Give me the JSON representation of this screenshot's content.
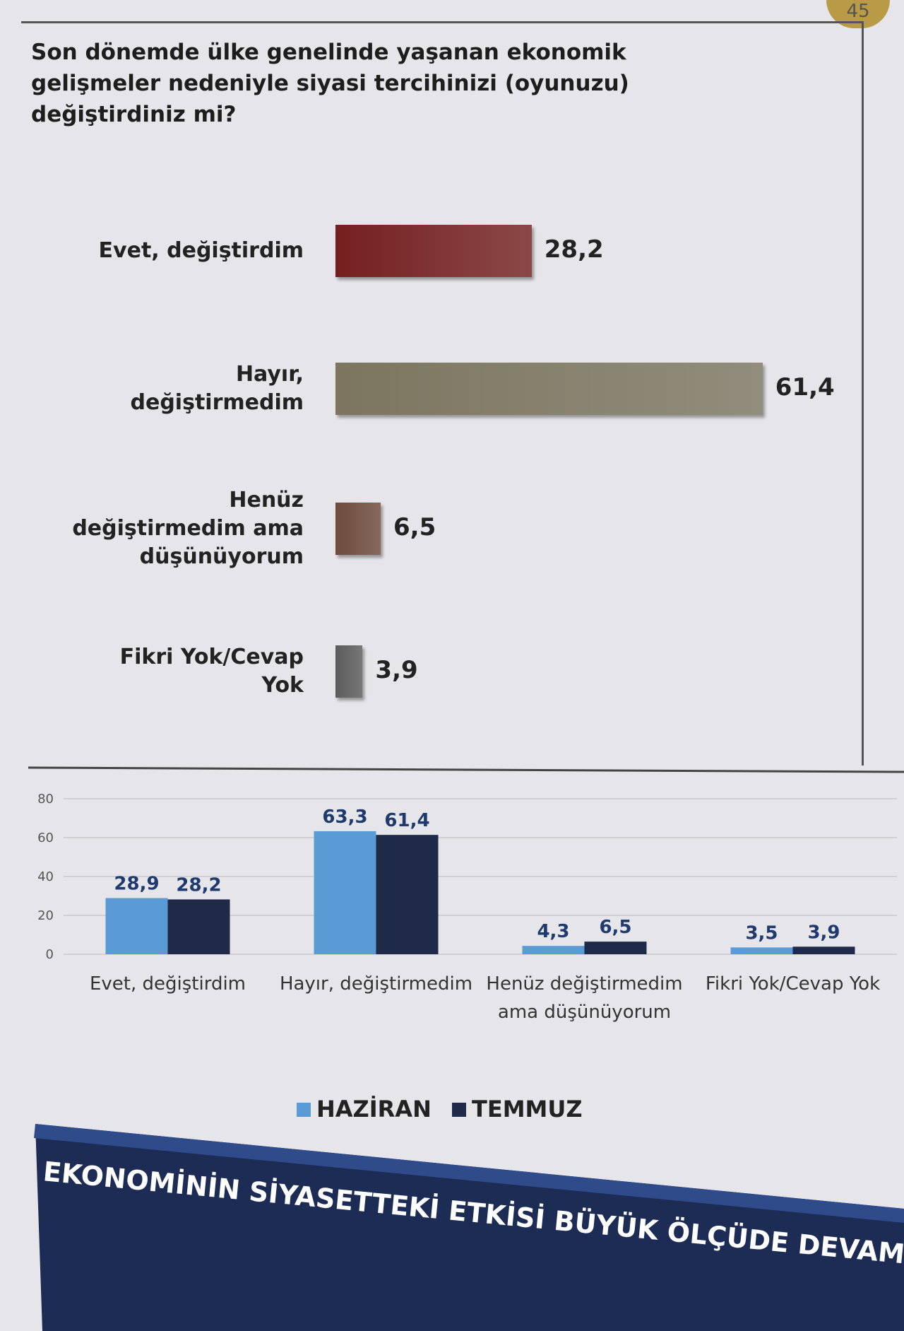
{
  "header": {
    "page_number": "45"
  },
  "chart_data": [
    {
      "type": "hbar",
      "title": "Son dönemde ülke genelinde yaşanan ekonomik gelişmeler nedeniyle siyasi tercihinizi (oyunuzu) değiştirdiniz mi?",
      "categories": [
        "Evet, değiştirdim",
        "Hayır, değiştirmedim",
        "Henüz değiştirmedim ama düşünüyorum",
        "Fikri Yok/Cevap Yok"
      ],
      "values": [
        28.2,
        61.4,
        6.5,
        3.9
      ],
      "value_labels": [
        "28,2",
        "61,4",
        "6,5",
        "3,9"
      ],
      "colors": [
        "#74201f",
        "#7c7660",
        "#6e4b3c",
        "#5c5c5c"
      ]
    },
    {
      "type": "grouped-bar",
      "categories": [
        "Evet, değiştirdim",
        "Hayır, değiştirmedim",
        "Henüz değiştirmedim ama düşünüyorum",
        "Fikri Yok/Cevap Yok"
      ],
      "series": [
        {
          "name": "HAZİRAN",
          "color": "#5b9bd5",
          "values": [
            28.9,
            63.3,
            4.3,
            3.5
          ],
          "value_labels": [
            "28,9",
            "63,3",
            "4,3",
            "3,5"
          ]
        },
        {
          "name": "TEMMUZ",
          "color": "#1f2a48",
          "values": [
            28.2,
            61.4,
            6.5,
            3.9
          ],
          "value_labels": [
            "28,2",
            "61,4",
            "6,5",
            "3,9"
          ]
        }
      ],
      "ylim": [
        0,
        80
      ],
      "yticks": [
        0,
        20,
        40,
        60,
        80
      ],
      "grid": true,
      "legend": "bottom"
    }
  ],
  "footer": {
    "banner": "EKONOMİNİN SİYASETTEKİ ETKİSİ BÜYÜK ÖLÇÜDE DEVAM EDİYOR."
  }
}
